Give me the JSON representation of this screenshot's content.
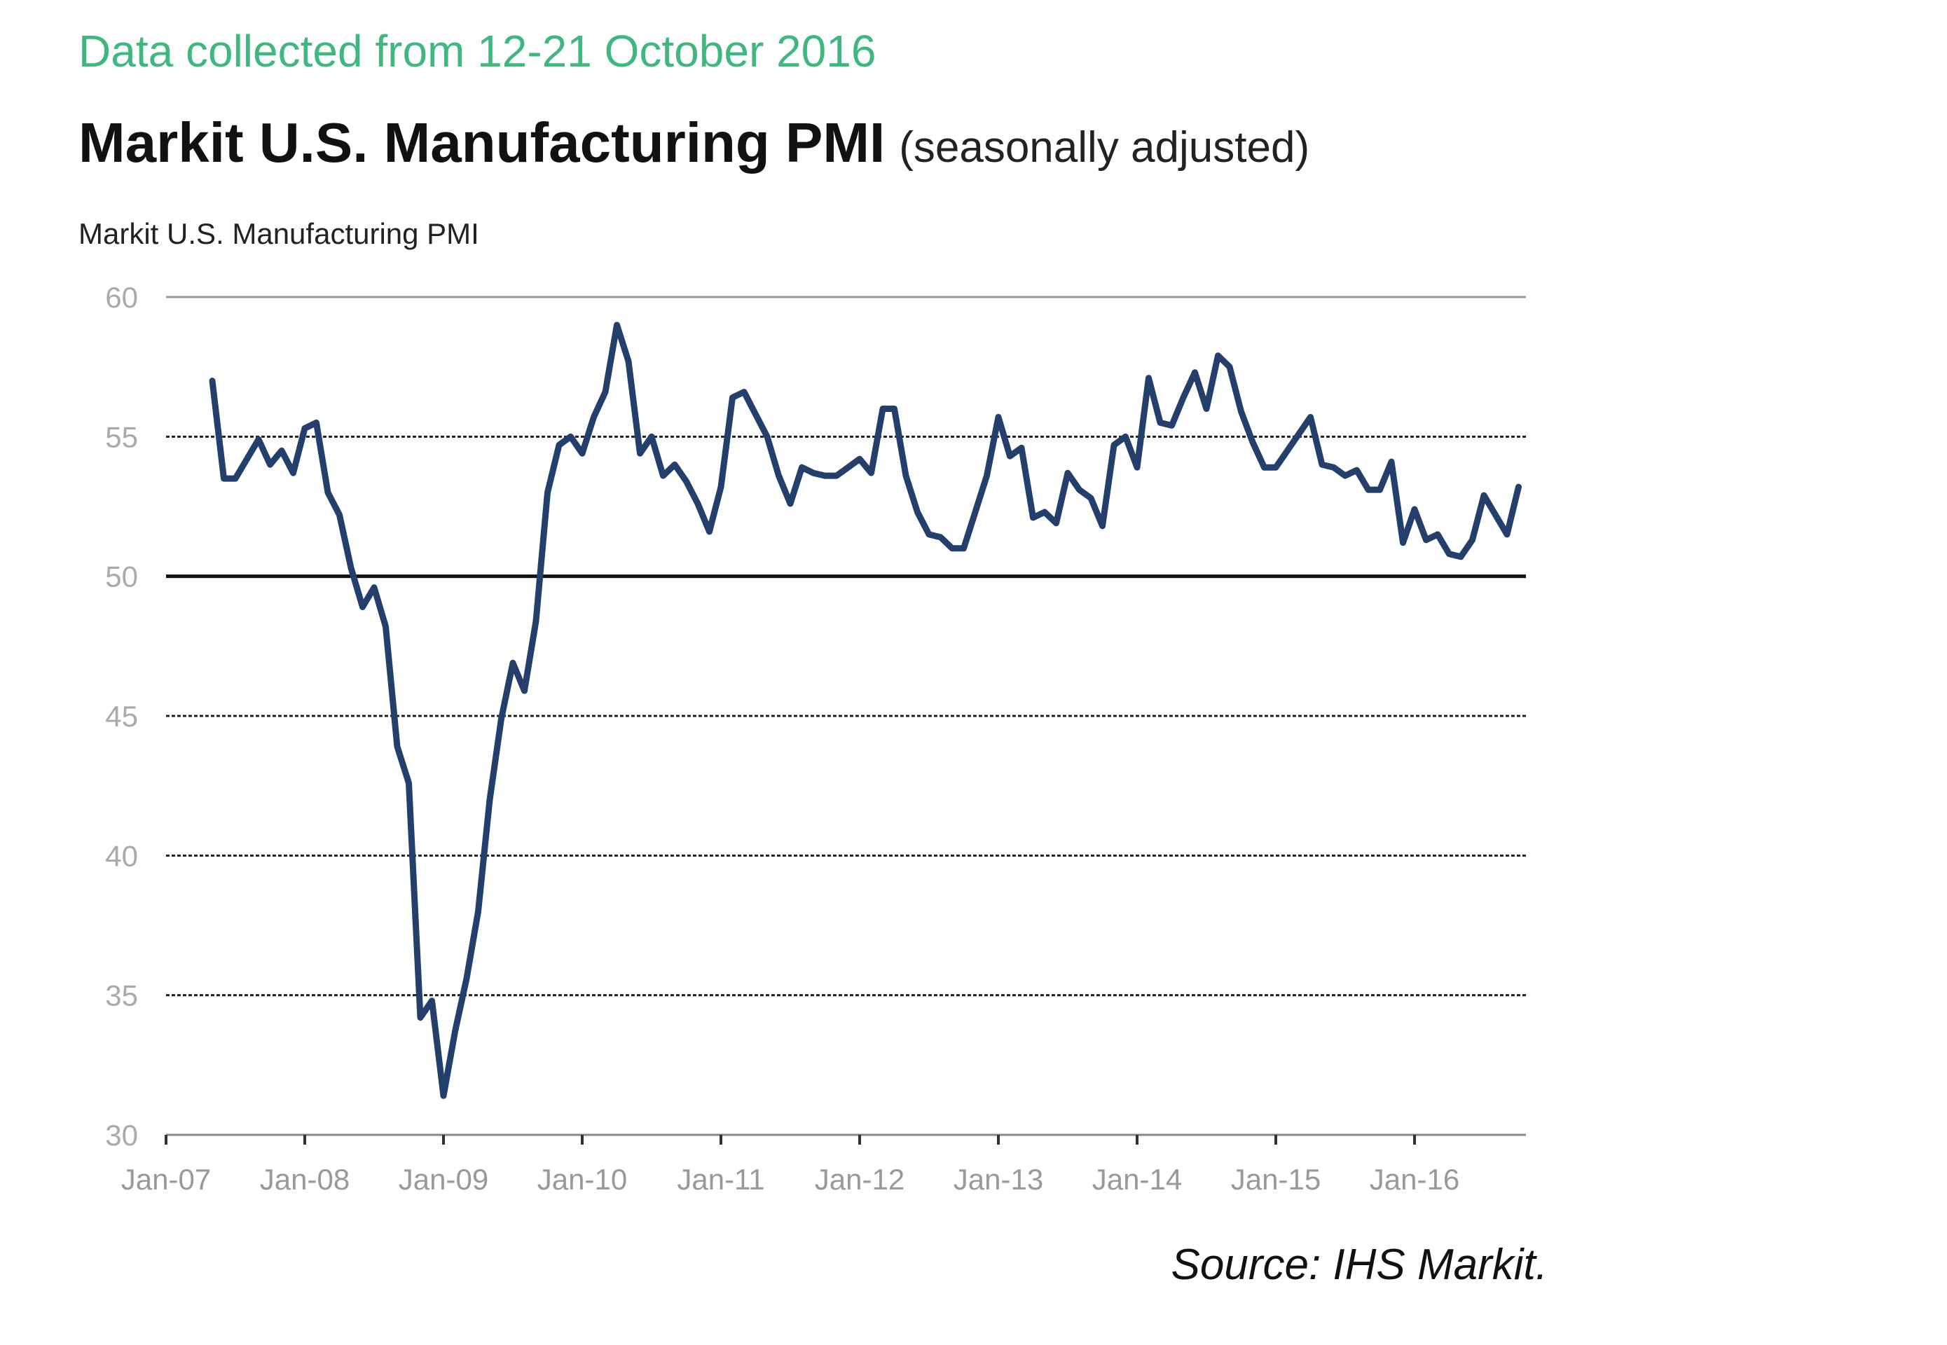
{
  "header": {
    "collection_note": "Data collected from 12-21 October 2016",
    "title": "Markit U.S. Manufacturing PMI",
    "title_qualifier": "(seasonally adjusted)"
  },
  "footer": {
    "source": "Source: IHS Markit."
  },
  "colors": {
    "line": "#243f6b",
    "note": "#3fb87f"
  },
  "chart_data": {
    "type": "line",
    "title": "Markit U.S. Manufacturing PMI",
    "ylabel": "Markit U.S. Manufacturing PMI",
    "xlabel": "",
    "ylim": [
      30,
      60
    ],
    "yticks": [
      "30",
      "35",
      "40",
      "45",
      "50",
      "55",
      "60"
    ],
    "xticks": [
      "Jan-07",
      "Jan-08",
      "Jan-09",
      "Jan-10",
      "Jan-11",
      "Jan-12",
      "Jan-13",
      "Jan-14",
      "Jan-15",
      "Jan-16"
    ],
    "grid": true,
    "reference_line": 50,
    "start": "May-07",
    "end": "Oct-16",
    "series": [
      {
        "name": "Markit U.S. Manufacturing PMI",
        "values": [
          57.0,
          53.5,
          53.5,
          54.2,
          54.9,
          54.0,
          54.5,
          53.7,
          55.3,
          55.5,
          53.0,
          52.2,
          50.3,
          48.9,
          49.6,
          48.2,
          43.9,
          42.6,
          34.2,
          34.8,
          31.4,
          33.7,
          35.6,
          38.0,
          42.0,
          44.9,
          46.9,
          45.9,
          48.4,
          53.0,
          54.7,
          55.0,
          54.4,
          55.7,
          56.6,
          59.0,
          57.7,
          54.4,
          55.0,
          53.6,
          54.0,
          53.4,
          52.6,
          51.6,
          53.2,
          56.4,
          56.6,
          55.8,
          55.0,
          53.6,
          52.6,
          53.9,
          53.7,
          53.6,
          53.6,
          53.9,
          54.2,
          53.7,
          56.0,
          56.0,
          53.6,
          52.3,
          51.5,
          51.4,
          51.0,
          51.0,
          52.3,
          53.6,
          55.7,
          54.3,
          54.6,
          52.1,
          52.3,
          51.9,
          53.7,
          53.1,
          52.8,
          51.8,
          54.7,
          55.0,
          53.9,
          57.1,
          55.5,
          55.4,
          56.4,
          57.3,
          56.0,
          57.9,
          57.5,
          55.9,
          54.8,
          53.9,
          53.9,
          54.5,
          55.1,
          55.7,
          54.0,
          53.9,
          53.6,
          53.8,
          53.1,
          53.1,
          54.1,
          51.2,
          52.4,
          51.3,
          51.5,
          50.8,
          50.7,
          51.3,
          52.9,
          52.2,
          51.5,
          53.2
        ]
      }
    ]
  }
}
